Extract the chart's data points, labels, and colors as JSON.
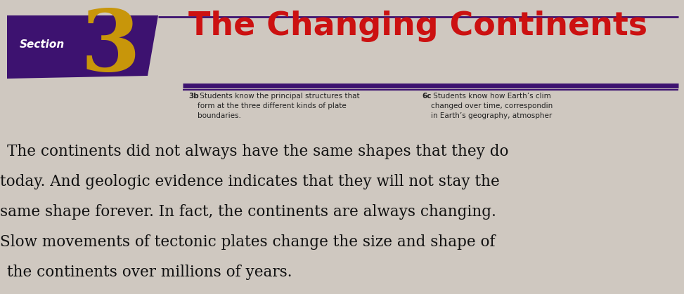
{
  "bg_color": "#cfc8c0",
  "page_bg": "#cfc8c0",
  "section_banner_color": "#3d1270",
  "section_text": "Section",
  "section_text_color": "#ffffff",
  "section_number": "3",
  "section_number_color": "#c8960a",
  "title": "The Changing Continents",
  "title_color": "#cc1111",
  "rule_color": "#3d1270",
  "subtitle1_bold": "3b",
  "subtitle1_text": " Students know the principal structures that\nform at the three different kinds of plate\nboundaries.",
  "subtitle2_bold": "6c",
  "subtitle2_text": " Students know how Earth’s clim\nchanged over time, correspondin\nin Earth’s geography, atmospher",
  "subtitle_color": "#222222",
  "body_lines": [
    "The continents did not always have the same shapes that they do",
    "today. And geologic evidence indicates that they will not stay the",
    "same shape forever. In fact, the continents are always changing.",
    "Slow movements of tectonic plates change the size and shape of",
    "the continents over millions of years."
  ],
  "body_color": "#111111"
}
